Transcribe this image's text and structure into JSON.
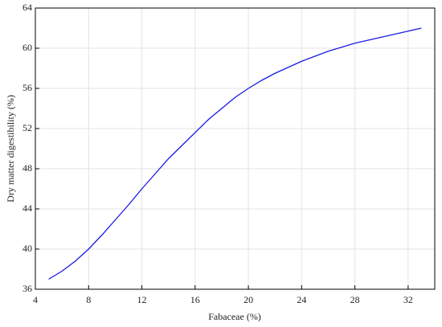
{
  "chart_data": {
    "type": "line",
    "x_label": "Fabaceae (%)",
    "y_label": "Dry matter digestibility (%)",
    "x": [
      5,
      6,
      7,
      8,
      9,
      10,
      11,
      12,
      13,
      14,
      15,
      16,
      17,
      18,
      19,
      20,
      21,
      22,
      23,
      24,
      25,
      26,
      27,
      28,
      29,
      30,
      31,
      32,
      33
    ],
    "series": [
      {
        "color": "#1a1ae6",
        "values": [
          37,
          37.8,
          38.8,
          40,
          41.4,
          42.9,
          44.4,
          46,
          47.5,
          49,
          50.3,
          51.6,
          52.9,
          54,
          55.1,
          56,
          56.8,
          57.5,
          58.1,
          58.7,
          59.2,
          59.7,
          60.1,
          60.5,
          60.8,
          61.1,
          61.4,
          61.7,
          62
        ]
      }
    ],
    "xlim": [
      4,
      34
    ],
    "xticks": [
      4,
      8,
      12,
      16,
      20,
      24,
      28,
      32
    ],
    "ylim": [
      36,
      64
    ],
    "yticks": [
      36,
      40,
      44,
      48,
      52,
      56,
      60,
      64
    ],
    "grid": true
  }
}
